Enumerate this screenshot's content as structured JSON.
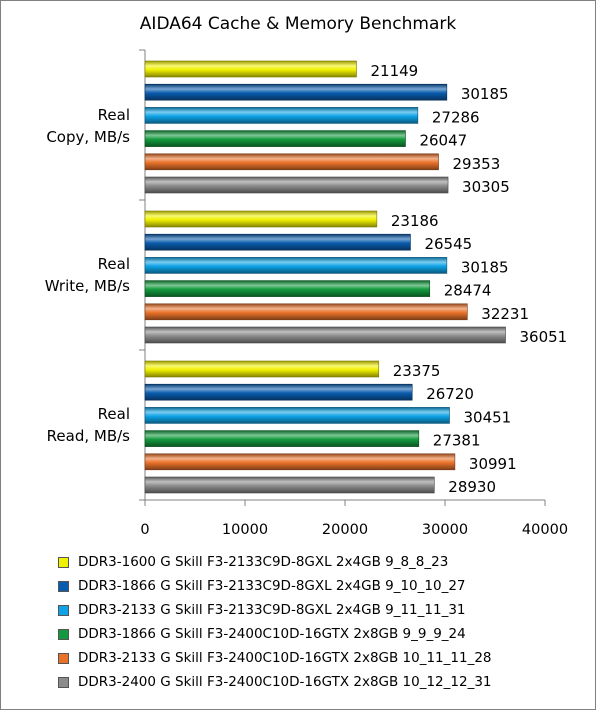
{
  "chart_data": {
    "type": "bar",
    "orientation": "horizontal",
    "title": "AIDA64 Cache & Memory Benchmark",
    "categories": [
      {
        "line1": "Real",
        "line2": "Copy, MB/s"
      },
      {
        "line1": "Real",
        "line2": "Write, MB/s"
      },
      {
        "line1": "Real",
        "line2": "Read, MB/s"
      }
    ],
    "series": [
      {
        "name": "DDR3-1600 G Skill F3-2133C9D-8GXL 2x4GB 9_8_8_23",
        "color": "#f0f000",
        "values": [
          21149,
          23186,
          23375
        ]
      },
      {
        "name": "DDR3-1866 G Skill F3-2133C9D-8GXL 2x4GB 9_10_10_27",
        "color": "#0a5cae",
        "values": [
          30185,
          26545,
          26720
        ]
      },
      {
        "name": "DDR3-2133 G Skill F3-2133C9D-8GXL 2x4GB 9_11_11_31",
        "color": "#0ea3e6",
        "values": [
          27286,
          30185,
          30451
        ]
      },
      {
        "name": "DDR3-1866 G Skill F3-2400C10D-16GTX 2x8GB 9_9_9_24",
        "color": "#139a3e",
        "values": [
          26047,
          28474,
          27381
        ]
      },
      {
        "name": "DDR3-2133 G Skill F3-2400C10D-16GTX 2x8GB 10_11_11_28",
        "color": "#e9722a",
        "values": [
          29353,
          32231,
          30991
        ]
      },
      {
        "name": "DDR3-2400 G Skill F3-2400C10D-16GTX 2x8GB 10_12_12_31",
        "color": "#8c8c8c",
        "values": [
          30305,
          36051,
          28930
        ]
      }
    ],
    "xlim": [
      0,
      40000
    ],
    "xticks": [
      "0",
      "10000",
      "20000",
      "30000",
      "40000"
    ],
    "grid": false,
    "legend_position": "bottom"
  }
}
